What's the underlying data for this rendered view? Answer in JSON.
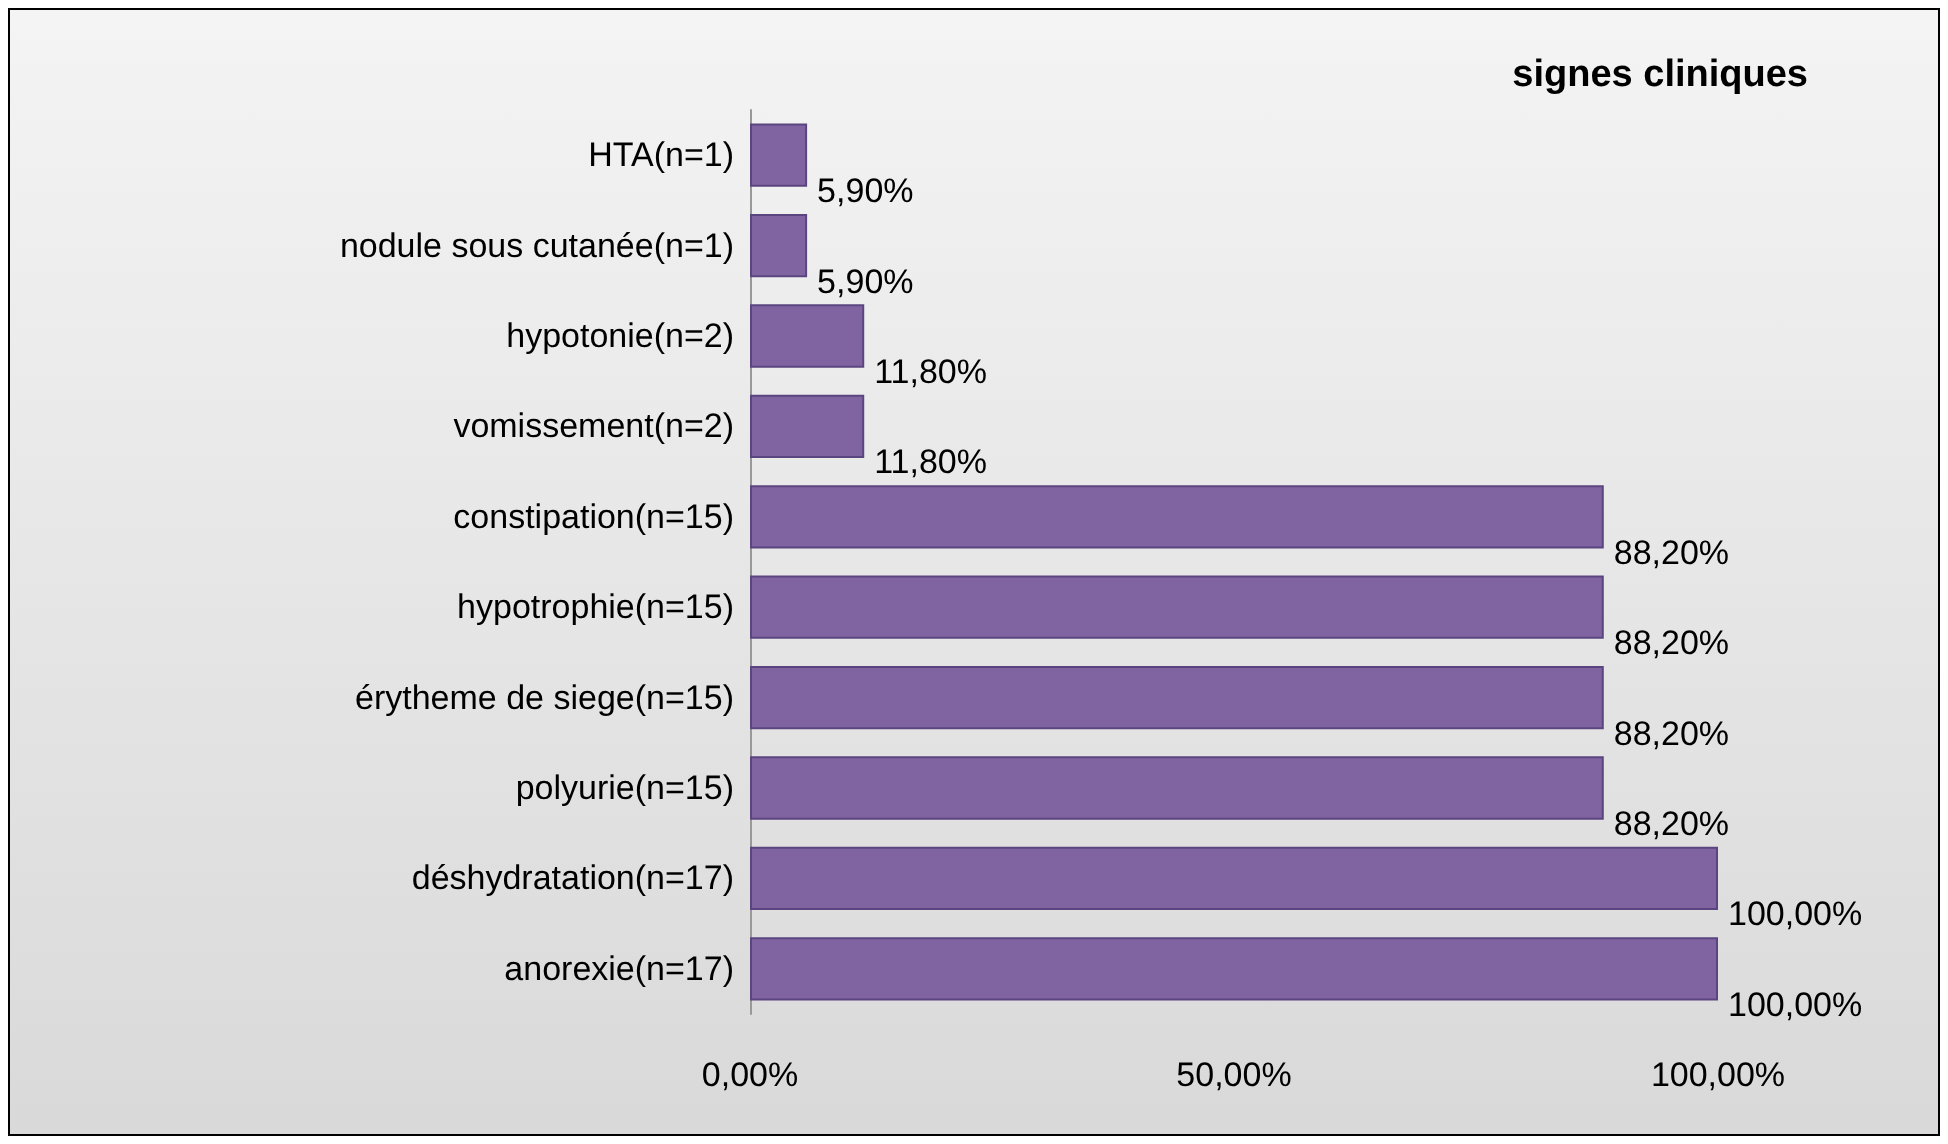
{
  "chart_data": {
    "type": "bar",
    "orientation": "horizontal",
    "title": "signes cliniques",
    "categories": [
      "HTA(n=1)",
      "nodule sous cutanée(n=1)",
      "hypotonie(n=2)",
      "vomissement(n=2)",
      "constipation(n=15)",
      "hypotrophie(n=15)",
      "érytheme de siege(n=15)",
      "polyurie(n=15)",
      "déshydratation(n=17)",
      "anorexie(n=17)"
    ],
    "values": [
      5.9,
      5.9,
      11.8,
      11.8,
      88.2,
      88.2,
      88.2,
      88.2,
      100,
      100
    ],
    "value_labels": [
      "5,90%",
      "5,90%",
      "11,80%",
      "11,80%",
      "88,20%",
      "88,20%",
      "88,20%",
      "88,20%",
      "100,00%",
      "100,00%"
    ],
    "color": "#8064a2",
    "xlim": [
      0,
      100
    ],
    "xticks": [
      {
        "value": 0,
        "label": "0,00%"
      },
      {
        "value": 50,
        "label": "50,00%"
      },
      {
        "value": 100,
        "label": "100,00%"
      }
    ],
    "grid": false
  }
}
